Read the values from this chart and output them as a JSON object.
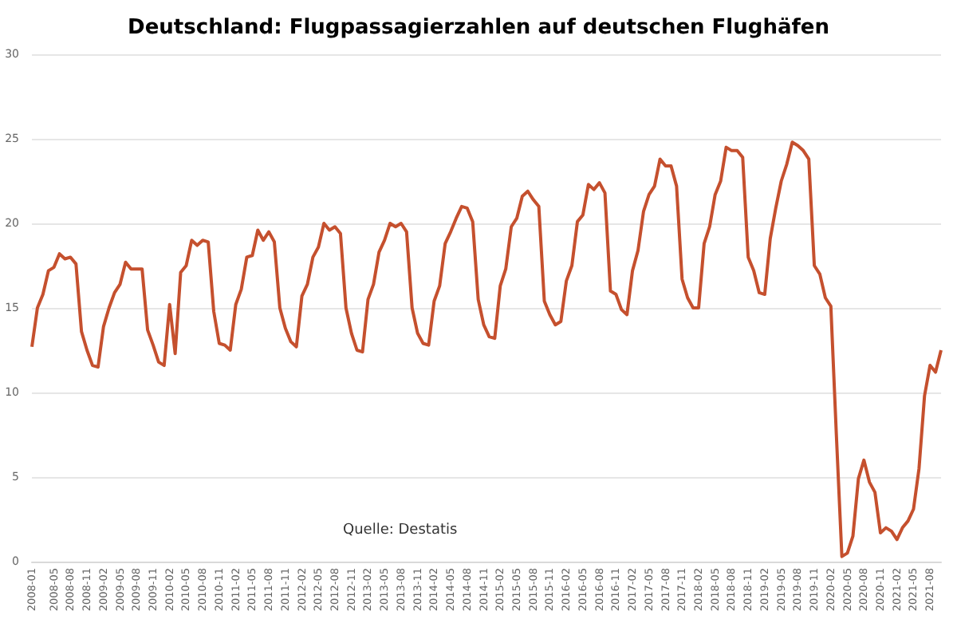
{
  "chart_data": {
    "type": "line",
    "title": "Deutschland: Flugpassagierzahlen auf deutschen Flughäfen",
    "annotations": [
      "Quelle: Destatis"
    ],
    "categories": [
      "2008-01",
      null,
      null,
      null,
      "2008-05",
      null,
      null,
      "2008-08",
      null,
      null,
      "2008-11",
      null,
      null,
      "2009-02",
      null,
      null,
      "2009-05",
      null,
      null,
      "2009-08",
      null,
      null,
      "2009-11",
      null,
      null,
      "2010-02",
      null,
      null,
      "2010-05",
      null,
      null,
      "2010-08",
      null,
      null,
      "2010-11",
      null,
      null,
      "2011-02",
      null,
      null,
      "2011-05",
      null,
      null,
      "2011-08",
      null,
      null,
      "2011-11",
      null,
      null,
      "2012-02",
      null,
      null,
      "2012-05",
      null,
      null,
      "2012-08",
      null,
      null,
      "2012-11",
      null,
      null,
      "2013-02",
      null,
      null,
      "2013-05",
      null,
      null,
      "2013-08",
      null,
      null,
      "2013-11",
      null,
      null,
      "2014-02",
      null,
      null,
      "2014-05",
      null,
      null,
      "2014-08",
      null,
      null,
      "2014-11",
      null,
      null,
      "2015-02",
      null,
      null,
      "2015-05",
      null,
      null,
      "2015-08",
      null,
      null,
      "2015-11",
      null,
      null,
      "2016-02",
      null,
      null,
      "2016-05",
      null,
      null,
      "2016-08",
      null,
      null,
      "2016-11",
      null,
      null,
      "2017-02",
      null,
      null,
      "2017-05",
      null,
      null,
      "2017-08",
      null,
      null,
      "2017-11",
      null,
      null,
      "2018-02",
      null,
      null,
      "2018-05",
      null,
      null,
      "2018-08",
      null,
      null,
      "2018-11",
      null,
      null,
      "2019-02",
      null,
      null,
      "2019-05",
      null,
      null,
      "2019-08",
      null,
      null,
      "2019-11",
      null,
      null,
      "2020-02",
      null,
      null,
      "2020-05",
      null,
      null,
      "2020-08",
      null,
      null,
      "2020-11",
      null,
      null,
      "2021-02",
      null,
      null,
      "2021-05",
      null,
      null,
      "2021-08",
      null,
      null
    ],
    "series": [
      {
        "color": "#c5502e",
        "values": [
          12.7,
          15.0,
          15.8,
          17.2,
          17.4,
          18.2,
          17.9,
          18.0,
          17.6,
          13.6,
          12.5,
          11.6,
          11.5,
          13.9,
          15.0,
          15.9,
          16.4,
          17.7,
          17.3,
          17.3,
          17.3,
          13.7,
          12.8,
          11.8,
          11.6,
          15.2,
          12.3,
          17.1,
          17.5,
          19.0,
          18.7,
          19.0,
          18.9,
          14.8,
          12.9,
          12.8,
          12.5,
          15.2,
          16.1,
          18.0,
          18.1,
          19.6,
          19.0,
          19.5,
          18.9,
          15.0,
          13.8,
          13.0,
          12.7,
          15.7,
          16.4,
          18.0,
          18.6,
          20.0,
          19.6,
          19.8,
          19.4,
          15.0,
          13.5,
          12.5,
          12.4,
          15.5,
          16.4,
          18.3,
          19.0,
          20.0,
          19.8,
          20.0,
          19.5,
          15.0,
          13.5,
          12.9,
          12.8,
          15.4,
          16.3,
          18.8,
          19.5,
          20.3,
          21.0,
          20.9,
          20.1,
          15.5,
          14.0,
          13.3,
          13.2,
          16.3,
          17.3,
          19.8,
          20.3,
          21.6,
          21.9,
          21.4,
          21.0,
          15.4,
          14.6,
          14.0,
          14.2,
          16.6,
          17.5,
          20.1,
          20.5,
          22.3,
          22.0,
          22.4,
          21.8,
          16.0,
          15.8,
          14.9,
          14.6,
          17.2,
          18.4,
          20.7,
          21.7,
          22.2,
          23.8,
          23.4,
          23.4,
          22.2,
          16.7,
          15.6,
          15.0,
          15.0,
          18.8,
          19.8,
          21.7,
          22.5,
          24.5,
          24.3,
          24.3,
          23.9,
          18.0,
          17.2,
          15.9,
          15.8,
          19.1,
          20.9,
          22.5,
          23.5,
          24.8,
          24.6,
          24.3,
          23.8,
          17.5,
          17.0,
          15.6,
          15.1,
          7.5,
          0.3,
          0.5,
          1.5,
          4.9,
          6.0,
          4.7,
          4.1,
          1.7,
          2.0,
          1.8,
          1.3,
          2.0,
          2.4,
          3.1,
          5.5,
          9.8,
          11.6,
          11.2,
          12.5
        ]
      }
    ],
    "ylim": [
      0,
      30
    ],
    "yticks": [
      0,
      5,
      10,
      15,
      20,
      25,
      30
    ],
    "grid": "y",
    "marker": "none",
    "line_style": "solid"
  }
}
